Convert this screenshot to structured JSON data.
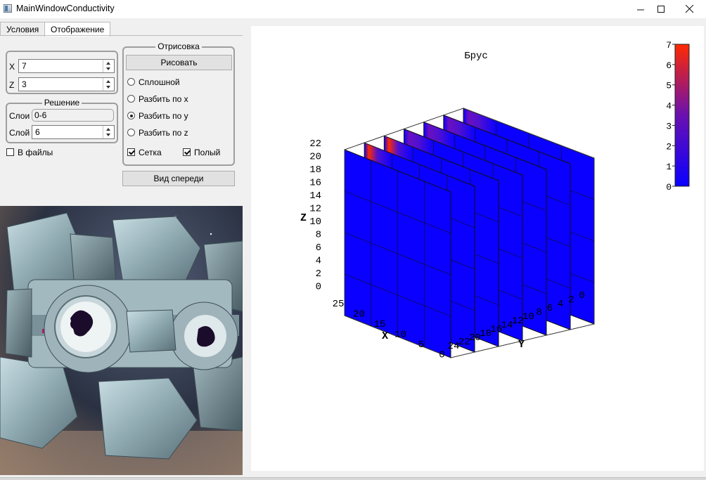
{
  "window": {
    "title": "MainWindowConductivity"
  },
  "tabs": [
    {
      "label": "Условия",
      "active": false
    },
    {
      "label": "Отображение",
      "active": true
    }
  ],
  "size_inputs": {
    "x_label": "X",
    "x_value": "7",
    "z_label": "Z",
    "z_value": "3"
  },
  "solution": {
    "title": "Решение",
    "layers_label": "Слои",
    "layers_value": "0-6",
    "layer_label": "Слой",
    "layer_value": "6"
  },
  "to_files": {
    "label": "В файлы",
    "checked": false
  },
  "render": {
    "title": "Отрисовка",
    "draw_button": "Рисовать",
    "modes": [
      {
        "label": "Сплошной",
        "checked": false
      },
      {
        "label": "Разбить по x",
        "checked": false
      },
      {
        "label": "Разбить по y",
        "checked": true
      },
      {
        "label": "Разбить по z",
        "checked": false
      }
    ],
    "grid": {
      "label": "Сетка",
      "checked": true
    },
    "hollow": {
      "label": "Полый",
      "checked": true
    }
  },
  "front_view_button": "Вид спереди",
  "viewport": {
    "icon": "companion-cube"
  },
  "chart_data": {
    "type": "3d-slices",
    "title": "Брус",
    "xlabel": "X",
    "ylabel": "Y",
    "zlabel": "Z",
    "x_ticks": [
      "25",
      "20",
      "15",
      "10",
      "5",
      "0"
    ],
    "y_ticks": [
      "24",
      "22",
      "20",
      "18",
      "16",
      "14",
      "12",
      "10",
      "8",
      "6",
      "4",
      "2",
      "0"
    ],
    "z_ticks": [
      "22",
      "20",
      "18",
      "16",
      "14",
      "12",
      "10",
      "8",
      "6",
      "4",
      "2",
      "0"
    ],
    "slice_axis": "y",
    "slice_count": 7,
    "colorbar": {
      "ticks": [
        "7",
        "6",
        "5",
        "4",
        "3",
        "2",
        "1",
        "0"
      ],
      "min": 0,
      "max": 7
    },
    "colors": {
      "low": "#0a00ff",
      "high": "#ff2a00"
    }
  }
}
